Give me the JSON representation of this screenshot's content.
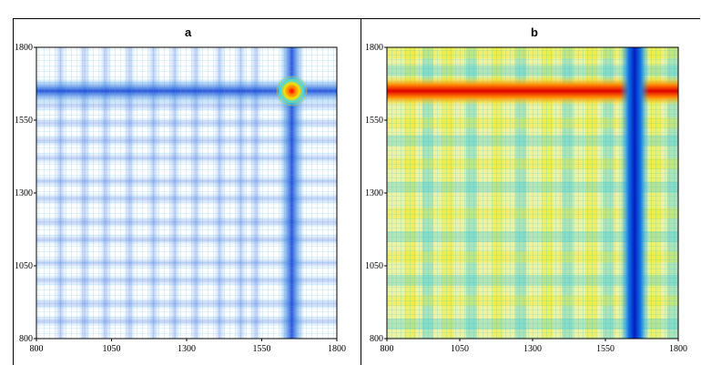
{
  "chart_data": [
    {
      "type": "heatmap",
      "panel_label": "a",
      "style": "contour",
      "xlim": [
        800,
        1800
      ],
      "ylim": [
        800,
        1800
      ],
      "xticks": [
        "800",
        "1050",
        "1300",
        "1550",
        "1800"
      ],
      "yticks": [
        "800",
        "1050",
        "1300",
        "1550",
        "1800"
      ],
      "hotspots": [
        [
          1650,
          1650
        ]
      ],
      "colors": [
        "#2fa6e8",
        "#0a3cd6",
        "#ffe000",
        "#ff2000"
      ]
    },
    {
      "type": "heatmap",
      "panel_label": "b",
      "style": "contour",
      "xlim": [
        800,
        1800
      ],
      "ylim": [
        800,
        1800
      ],
      "xticks": [
        "800",
        "1050",
        "1300",
        "1550",
        "1800"
      ],
      "yticks": [
        "800",
        "1050",
        "1300",
        "1550",
        "1800"
      ],
      "red_band_y": 1650,
      "blue_band_x": 1650,
      "colors": [
        "#00c8d8",
        "#f2e800",
        "#ff2000",
        "#0a30d0"
      ]
    }
  ]
}
